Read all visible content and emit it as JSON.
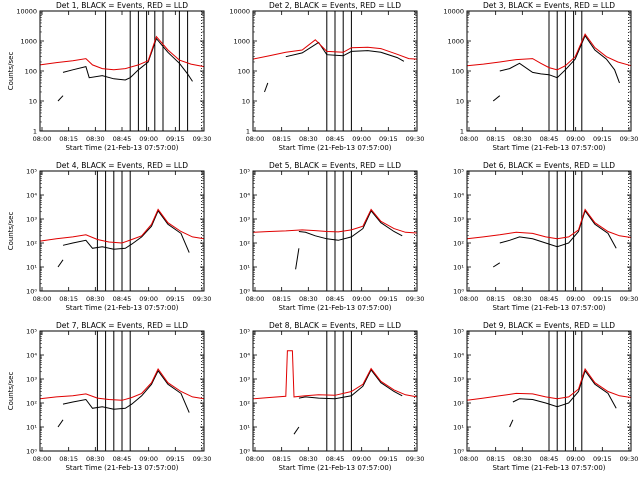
{
  "chart_data": [
    {
      "type": "line",
      "title": "Det 1, BLACK = Events, RED = LLD",
      "xlabel": "Start Time (21-Feb-13 07:57:00)",
      "ylabel": "Counts/sec",
      "log": true,
      "ylim": [
        1,
        10000
      ],
      "ytick_style": "plain",
      "yticks": [
        "1",
        "10",
        "100",
        "1000",
        "10000"
      ],
      "x_ticks": [
        "08:00",
        "08:15",
        "08:30",
        "08:45",
        "09:00",
        "09:15",
        "09:30"
      ],
      "event_lines": [
        0.4,
        0.55,
        0.6,
        0.65,
        0.7,
        0.75,
        0.85,
        0.9
      ],
      "dotted_right": 0.985,
      "red_segments": [
        {
          "x": [
            0.0,
            0.1,
            0.2,
            0.28,
            0.32,
            0.38,
            0.45,
            0.52,
            0.6,
            0.66,
            0.71,
            0.78,
            0.85,
            0.92,
            1.0
          ],
          "y": [
            160,
            190,
            220,
            260,
            160,
            120,
            110,
            120,
            160,
            220,
            1400,
            500,
            230,
            170,
            140
          ]
        }
      ],
      "black_segments": [
        {
          "x": [
            0.11,
            0.14
          ],
          "y": [
            10,
            15
          ]
        },
        {
          "x": [
            0.14,
            0.2,
            0.28,
            0.3,
            0.38,
            0.45,
            0.52,
            0.55,
            0.6,
            0.66,
            0.71,
            0.78,
            0.85,
            0.9,
            0.93
          ],
          "y": [
            90,
            110,
            140,
            60,
            70,
            55,
            50,
            60,
            110,
            200,
            1200,
            420,
            180,
            80,
            45
          ]
        }
      ]
    },
    {
      "type": "line",
      "title": "Det 2, BLACK = Events, RED = LLD",
      "xlabel": "Start Time (21-Feb-13 07:57:00)",
      "ylabel": "",
      "log": true,
      "ylim": [
        1,
        10000
      ],
      "ytick_style": "plain",
      "yticks": [
        "1",
        "10",
        "100",
        "1000",
        "10000"
      ],
      "x_ticks": [
        "08:00",
        "08:15",
        "08:30",
        "08:45",
        "09:00",
        "09:15",
        "09:30"
      ],
      "event_lines": [
        0.45,
        0.5,
        0.55,
        0.6
      ],
      "dotted_right": 0.985,
      "red_segments": [
        {
          "x": [
            0.0,
            0.1,
            0.2,
            0.3,
            0.38,
            0.45,
            0.55,
            0.6,
            0.7,
            0.78,
            0.88,
            0.95,
            1.0
          ],
          "y": [
            250,
            320,
            420,
            500,
            1100,
            450,
            420,
            600,
            620,
            560,
            360,
            260,
            250
          ]
        }
      ],
      "black_segments": [
        {
          "x": [
            0.07,
            0.09
          ],
          "y": [
            20,
            40
          ]
        },
        {
          "x": [
            0.2,
            0.3,
            0.4,
            0.45,
            0.55,
            0.6,
            0.7,
            0.78,
            0.88,
            0.92
          ],
          "y": [
            300,
            400,
            900,
            350,
            320,
            450,
            480,
            420,
            280,
            210
          ]
        }
      ]
    },
    {
      "type": "line",
      "title": "Det 3, BLACK = Events, RED = LLD",
      "xlabel": "Start Time (21-Feb-13 07:57:00)",
      "ylabel": "",
      "log": true,
      "ylim": [
        1,
        10000
      ],
      "ytick_style": "plain",
      "yticks": [
        "1",
        "10",
        "100",
        "1000",
        "10000"
      ],
      "x_ticks": [
        "08:00",
        "08:15",
        "08:30",
        "08:45",
        "09:00",
        "09:15",
        "09:30"
      ],
      "event_lines": [
        0.5,
        0.55,
        0.6,
        0.65,
        0.7
      ],
      "dotted_right": 0.985,
      "red_segments": [
        {
          "x": [
            0.0,
            0.1,
            0.2,
            0.3,
            0.4,
            0.45,
            0.5,
            0.55,
            0.6,
            0.66,
            0.72,
            0.78,
            0.85,
            0.92,
            1.0
          ],
          "y": [
            150,
            170,
            200,
            240,
            260,
            180,
            130,
            110,
            150,
            300,
            1700,
            600,
            300,
            200,
            150
          ]
        }
      ],
      "black_segments": [
        {
          "x": [
            0.16,
            0.2
          ],
          "y": [
            10,
            15
          ]
        },
        {
          "x": [
            0.2,
            0.26,
            0.32,
            0.4,
            0.45,
            0.5,
            0.55,
            0.6,
            0.66,
            0.72,
            0.78,
            0.85,
            0.9,
            0.93
          ],
          "y": [
            100,
            120,
            180,
            90,
            80,
            75,
            60,
            110,
            250,
            1500,
            500,
            250,
            110,
            40
          ]
        }
      ]
    },
    {
      "type": "line",
      "title": "Det 4, BLACK = Events, RED = LLD",
      "xlabel": "Start Time (21-Feb-13 07:57:00)",
      "ylabel": "Counts/sec",
      "log": true,
      "ylim": [
        1,
        100000
      ],
      "ytick_style": "exp",
      "yticks": [
        "10⁰",
        "10¹",
        "10²",
        "10³",
        "10⁴",
        "10⁵"
      ],
      "x_ticks": [
        "08:00",
        "08:15",
        "08:30",
        "08:45",
        "09:00",
        "09:15",
        "09:30"
      ],
      "event_lines": [
        0.35,
        0.4,
        0.45,
        0.5,
        0.55
      ],
      "dotted_right": 0.985,
      "red_segments": [
        {
          "x": [
            0.0,
            0.1,
            0.2,
            0.28,
            0.35,
            0.42,
            0.5,
            0.56,
            0.62,
            0.68,
            0.72,
            0.78,
            0.86,
            0.93,
            1.0
          ],
          "y": [
            120,
            150,
            180,
            220,
            140,
            110,
            100,
            140,
            200,
            600,
            2500,
            700,
            300,
            180,
            150
          ]
        }
      ],
      "black_segments": [
        {
          "x": [
            0.11,
            0.14
          ],
          "y": [
            10,
            20
          ]
        },
        {
          "x": [
            0.14,
            0.2,
            0.28,
            0.32,
            0.38,
            0.45,
            0.52,
            0.56,
            0.62,
            0.68,
            0.72,
            0.78,
            0.86,
            0.91
          ],
          "y": [
            80,
            100,
            130,
            60,
            70,
            55,
            60,
            90,
            180,
            500,
            2200,
            600,
            250,
            40
          ]
        }
      ]
    },
    {
      "type": "line",
      "title": "Det 5, BLACK = Events, RED = LLD",
      "xlabel": "Start Time (21-Feb-13 07:57:00)",
      "ylabel": "",
      "log": true,
      "ylim": [
        1,
        100000
      ],
      "ytick_style": "exp",
      "yticks": [
        "10⁰",
        "10¹",
        "10²",
        "10³",
        "10⁴",
        "10⁵"
      ],
      "x_ticks": [
        "08:00",
        "08:15",
        "08:30",
        "08:45",
        "09:00",
        "09:15",
        "09:30"
      ],
      "event_lines": [
        0.45,
        0.5,
        0.55,
        0.6
      ],
      "dotted_right": 0.985,
      "red_segments": [
        {
          "x": [
            0.0,
            0.1,
            0.2,
            0.3,
            0.38,
            0.45,
            0.52,
            0.6,
            0.67,
            0.72,
            0.78,
            0.86,
            0.93,
            1.0
          ],
          "y": [
            280,
            300,
            320,
            350,
            330,
            300,
            290,
            350,
            500,
            2500,
            800,
            400,
            280,
            260
          ]
        }
      ],
      "black_segments": [
        {
          "x": [
            0.26,
            0.28
          ],
          "y": [
            8,
            60
          ]
        },
        {
          "x": [
            0.28,
            0.32,
            0.38,
            0.45,
            0.52,
            0.6,
            0.67,
            0.72,
            0.78,
            0.86,
            0.91
          ],
          "y": [
            300,
            280,
            200,
            150,
            130,
            180,
            400,
            2200,
            700,
            300,
            200
          ]
        }
      ]
    },
    {
      "type": "line",
      "title": "Det 6, BLACK = Events, RED = LLD",
      "xlabel": "Start Time (21-Feb-13 07:57:00)",
      "ylabel": "",
      "log": true,
      "ylim": [
        1,
        100000
      ],
      "ytick_style": "exp",
      "yticks": [
        "10⁰",
        "10¹",
        "10²",
        "10³",
        "10⁴",
        "10⁵"
      ],
      "x_ticks": [
        "08:00",
        "08:15",
        "08:30",
        "08:45",
        "09:00",
        "09:15",
        "09:30"
      ],
      "event_lines": [
        0.5,
        0.55,
        0.6,
        0.65,
        0.7
      ],
      "dotted_right": 0.985,
      "red_segments": [
        {
          "x": [
            0.0,
            0.1,
            0.2,
            0.3,
            0.4,
            0.48,
            0.55,
            0.62,
            0.68,
            0.72,
            0.78,
            0.86,
            0.93,
            1.0
          ],
          "y": [
            150,
            180,
            220,
            280,
            250,
            180,
            150,
            180,
            350,
            2500,
            700,
            300,
            200,
            170
          ]
        }
      ],
      "black_segments": [
        {
          "x": [
            0.16,
            0.2
          ],
          "y": [
            10,
            15
          ]
        },
        {
          "x": [
            0.2,
            0.26,
            0.32,
            0.4,
            0.48,
            0.55,
            0.62,
            0.68,
            0.72,
            0.78,
            0.86,
            0.91
          ],
          "y": [
            100,
            130,
            180,
            150,
            100,
            70,
            100,
            300,
            2200,
            600,
            250,
            60
          ]
        }
      ]
    },
    {
      "type": "line",
      "title": "Det 7, BLACK = Events, RED = LLD",
      "xlabel": "Start Time (21-Feb-13 07:57:00)",
      "ylabel": "Counts/sec",
      "log": true,
      "ylim": [
        1,
        100000
      ],
      "ytick_style": "exp",
      "yticks": [
        "10⁰",
        "10¹",
        "10²",
        "10³",
        "10⁴",
        "10⁵"
      ],
      "x_ticks": [
        "08:00",
        "08:15",
        "08:30",
        "08:45",
        "09:00",
        "09:15",
        "09:30"
      ],
      "event_lines": [
        0.35,
        0.4,
        0.45,
        0.5,
        0.55
      ],
      "dotted_right": 0.985,
      "red_segments": [
        {
          "x": [
            0.0,
            0.1,
            0.2,
            0.28,
            0.35,
            0.42,
            0.5,
            0.56,
            0.62,
            0.68,
            0.72,
            0.78,
            0.86,
            0.93,
            1.0
          ],
          "y": [
            150,
            180,
            200,
            240,
            160,
            140,
            130,
            170,
            250,
            700,
            2600,
            700,
            300,
            180,
            150
          ]
        }
      ],
      "black_segments": [
        {
          "x": [
            0.11,
            0.14
          ],
          "y": [
            10,
            20
          ]
        },
        {
          "x": [
            0.14,
            0.2,
            0.28,
            0.32,
            0.38,
            0.45,
            0.52,
            0.56,
            0.62,
            0.68,
            0.72,
            0.78,
            0.86,
            0.91
          ],
          "y": [
            90,
            110,
            140,
            60,
            70,
            55,
            60,
            90,
            200,
            600,
            2200,
            600,
            250,
            40
          ]
        }
      ]
    },
    {
      "type": "line",
      "title": "Det 8, BLACK = Events, RED = LLD",
      "xlabel": "Start Time (21-Feb-13 07:57:00)",
      "ylabel": "",
      "log": true,
      "ylim": [
        1,
        100000
      ],
      "ytick_style": "exp",
      "yticks": [
        "10⁰",
        "10¹",
        "10²",
        "10³",
        "10⁴",
        "10⁵"
      ],
      "x_ticks": [
        "08:00",
        "08:15",
        "08:30",
        "08:45",
        "09:00",
        "09:15",
        "09:30"
      ],
      "event_lines": [
        0.45,
        0.5,
        0.55,
        0.6
      ],
      "dotted_right": 0.985,
      "red_segments": [
        {
          "x": [
            0.0,
            0.1,
            0.2,
            0.21,
            0.24,
            0.25,
            0.32,
            0.4,
            0.5,
            0.6,
            0.67,
            0.72,
            0.78,
            0.86,
            0.93,
            1.0
          ],
          "y": [
            150,
            170,
            190,
            15000,
            15000,
            180,
            200,
            220,
            210,
            300,
            600,
            2700,
            800,
            350,
            220,
            180
          ]
        }
      ],
      "black_segments": [
        {
          "x": [
            0.25,
            0.28
          ],
          "y": [
            5,
            10
          ]
        },
        {
          "x": [
            0.28,
            0.32,
            0.4,
            0.5,
            0.6,
            0.67,
            0.72,
            0.78,
            0.86,
            0.91
          ],
          "y": [
            160,
            180,
            160,
            150,
            200,
            500,
            2400,
            700,
            300,
            200
          ]
        }
      ]
    },
    {
      "type": "line",
      "title": "Det 9, BLACK = Events, RED = LLD",
      "xlabel": "Start Time (21-Feb-13 07:57:00)",
      "ylabel": "",
      "log": true,
      "ylim": [
        1,
        100000
      ],
      "ytick_style": "exp",
      "yticks": [
        "10⁰",
        "10¹",
        "10²",
        "10³",
        "10⁴",
        "10⁵"
      ],
      "x_ticks": [
        "08:00",
        "08:15",
        "08:30",
        "08:45",
        "09:00",
        "09:15",
        "09:30"
      ],
      "event_lines": [
        0.5,
        0.55,
        0.6,
        0.65,
        0.7
      ],
      "dotted_right": 0.985,
      "red_segments": [
        {
          "x": [
            0.0,
            0.1,
            0.2,
            0.3,
            0.4,
            0.48,
            0.55,
            0.62,
            0.68,
            0.72,
            0.78,
            0.86,
            0.93,
            1.0
          ],
          "y": [
            130,
            160,
            200,
            250,
            240,
            180,
            150,
            180,
            380,
            2600,
            700,
            300,
            200,
            170
          ]
        }
      ],
      "black_segments": [
        {
          "x": [
            0.26,
            0.28
          ],
          "y": [
            10,
            20
          ]
        },
        {
          "x": [
            0.28,
            0.32,
            0.4,
            0.48,
            0.55,
            0.62,
            0.68,
            0.72,
            0.78,
            0.86,
            0.91
          ],
          "y": [
            110,
            150,
            140,
            100,
            70,
            100,
            300,
            2200,
            600,
            250,
            60
          ]
        }
      ]
    }
  ]
}
